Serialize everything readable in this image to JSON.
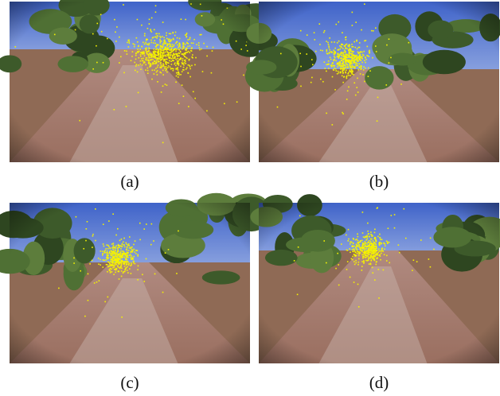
{
  "panels": [
    {
      "caption": "(a)"
    },
    {
      "caption": "(b)"
    },
    {
      "caption": "(c)"
    },
    {
      "caption": "(d)"
    }
  ]
}
